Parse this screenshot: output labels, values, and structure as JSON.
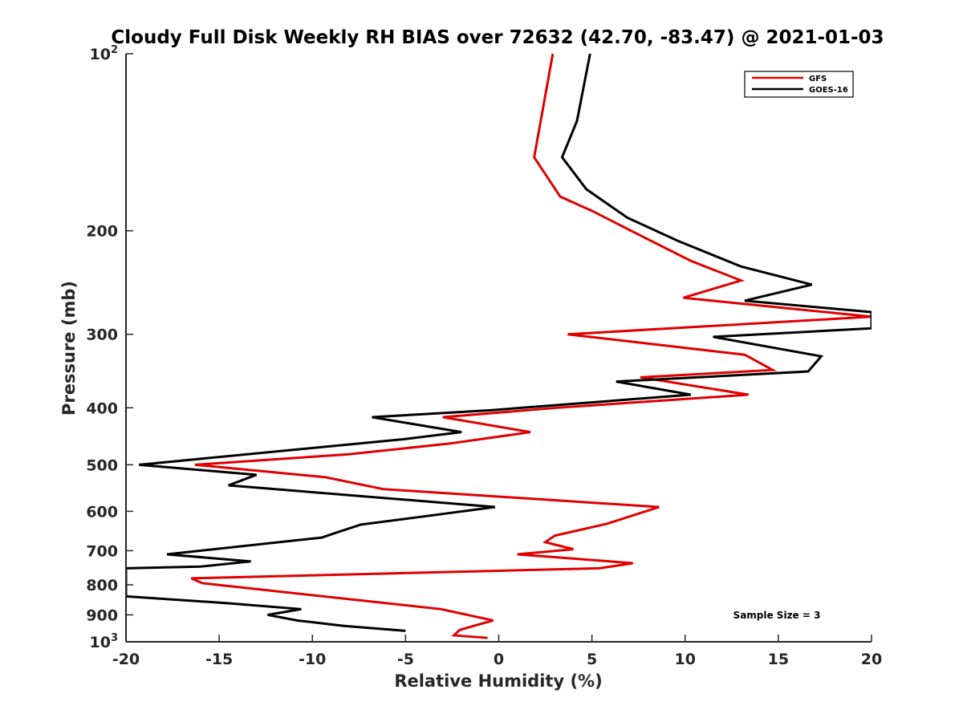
{
  "chart_data": {
    "type": "line",
    "title": "Cloudy Full Disk Weekly RH BIAS over 72632 (42.70, -83.47) @ 2021-01-03",
    "xlabel": "Relative Humidity (%)",
    "ylabel": "Pressure (mb)",
    "xlim": [
      -20,
      20
    ],
    "ylim": [
      100,
      1000
    ],
    "yscale": "log",
    "y_reversed": true,
    "xticks": [
      -20,
      -15,
      -10,
      -5,
      0,
      5,
      10,
      15,
      20
    ],
    "yticks": [
      {
        "value": 100,
        "base": "10",
        "exp": "2"
      },
      {
        "value": 200,
        "label": "200"
      },
      {
        "value": 300,
        "label": "300"
      },
      {
        "value": 400,
        "label": "400"
      },
      {
        "value": 500,
        "label": "500"
      },
      {
        "value": 600,
        "label": "600"
      },
      {
        "value": 700,
        "label": "700"
      },
      {
        "value": 800,
        "label": "800"
      },
      {
        "value": 900,
        "label": "900"
      },
      {
        "value": 1000,
        "base": "10",
        "exp": "3"
      }
    ],
    "legend": {
      "position": "top-right"
    },
    "annotation": "Sample Size = 3",
    "series": [
      {
        "name": "GFS",
        "color": "#e00000",
        "points": [
          [
            2.9,
            100
          ],
          [
            1.9,
            150
          ],
          [
            3.3,
            175
          ],
          [
            5.0,
            185
          ],
          [
            7.1,
            200
          ],
          [
            10.3,
            225
          ],
          [
            13.0,
            243
          ],
          [
            9.9,
            260
          ],
          [
            20.0,
            280
          ],
          [
            3.7,
            300
          ],
          [
            13.2,
            325
          ],
          [
            14.7,
            345
          ],
          [
            7.6,
            355
          ],
          [
            13.4,
            380
          ],
          [
            3.1,
            400
          ],
          [
            -3.0,
            415
          ],
          [
            1.7,
            440
          ],
          [
            -2.6,
            460
          ],
          [
            -8.1,
            480
          ],
          [
            -16.3,
            500
          ],
          [
            -9.3,
            525
          ],
          [
            -6.2,
            550
          ],
          [
            8.6,
            590
          ],
          [
            5.8,
            630
          ],
          [
            3.0,
            660
          ],
          [
            2.5,
            677
          ],
          [
            4.0,
            696
          ],
          [
            1.0,
            710
          ],
          [
            7.2,
            735
          ],
          [
            5.4,
            750
          ],
          [
            -16.5,
            780
          ],
          [
            -15.9,
            795
          ],
          [
            -3.1,
            880
          ],
          [
            -0.3,
            920
          ],
          [
            -1.1,
            935
          ],
          [
            -2.1,
            955
          ],
          [
            -2.4,
            975
          ],
          [
            -0.6,
            985
          ]
        ]
      },
      {
        "name": "GOES-16",
        "color": "#000000",
        "points": [
          [
            4.9,
            100
          ],
          [
            4.2,
            130
          ],
          [
            3.4,
            150
          ],
          [
            4.7,
            170
          ],
          [
            6.9,
            190
          ],
          [
            9.6,
            208
          ],
          [
            13.0,
            230
          ],
          [
            16.8,
            247
          ],
          [
            13.2,
            263
          ],
          [
            20.0,
            275
          ],
          [
            20.0,
            293
          ],
          [
            11.5,
            303
          ],
          [
            17.3,
            327
          ],
          [
            16.6,
            347
          ],
          [
            6.3,
            361
          ],
          [
            10.3,
            380
          ],
          [
            -0.5,
            404
          ],
          [
            -6.8,
            415
          ],
          [
            -2.0,
            440
          ],
          [
            -5.0,
            452
          ],
          [
            -19.3,
            500
          ],
          [
            -13.0,
            520
          ],
          [
            -14.5,
            542
          ],
          [
            -0.2,
            590
          ],
          [
            -4.0,
            612
          ],
          [
            -7.4,
            632
          ],
          [
            -8.7,
            652
          ],
          [
            -9.5,
            665
          ],
          [
            -17.8,
            710
          ],
          [
            -13.3,
            730
          ],
          [
            -16.0,
            745
          ],
          [
            -20.0,
            750
          ],
          [
            -20.0,
            837
          ],
          [
            -14.5,
            860
          ],
          [
            -10.6,
            880
          ],
          [
            -12.4,
            900
          ],
          [
            -10.8,
            920
          ],
          [
            -8.3,
            940
          ],
          [
            -5.0,
            958
          ]
        ]
      }
    ]
  }
}
